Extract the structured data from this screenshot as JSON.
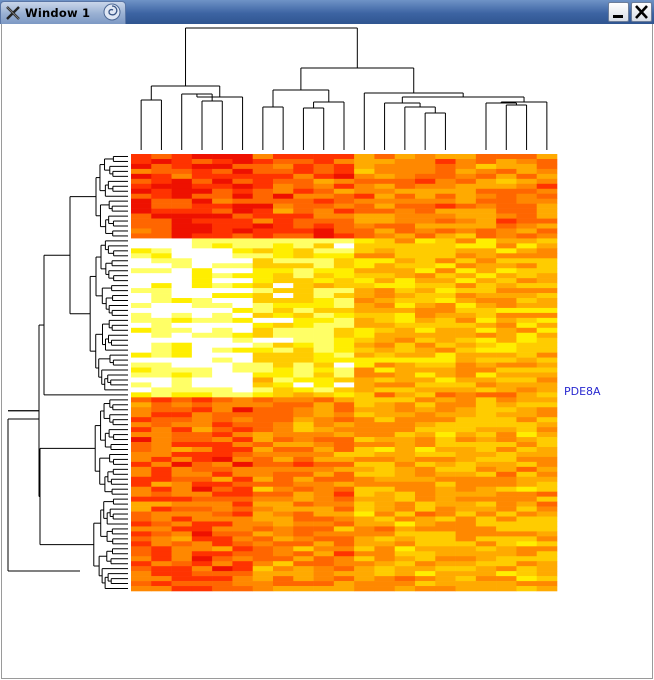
{
  "window": {
    "title": "Window 1",
    "minimize_icon": "minimize-icon",
    "close_icon": "close-icon",
    "app_icon": "x-logo-icon",
    "swirl_icon": "swirl-icon"
  },
  "heatmap": {
    "highlighted_gene": "PDE8A",
    "rows": 88,
    "columns": 21,
    "palette": [
      "#ffffff",
      "#ffff66",
      "#ffee00",
      "#ffcc00",
      "#ffaa00",
      "#ff8800",
      "#ff6600",
      "#ff3300",
      "#ee1100"
    ],
    "row_cluster_bands": [
      {
        "start": 0,
        "end": 17,
        "level": 6
      },
      {
        "start": 17,
        "end": 48,
        "level": 2
      },
      {
        "start": 48,
        "end": 49,
        "level": 3
      },
      {
        "start": 49,
        "end": 69,
        "level": 5
      },
      {
        "start": 69,
        "end": 88,
        "level": 5
      }
    ],
    "column_cluster_bands": [
      {
        "start": 0,
        "end": 6,
        "shift": 1
      },
      {
        "start": 6,
        "end": 11,
        "shift": 0
      },
      {
        "start": 11,
        "end": 21,
        "shift": -1
      }
    ]
  }
}
